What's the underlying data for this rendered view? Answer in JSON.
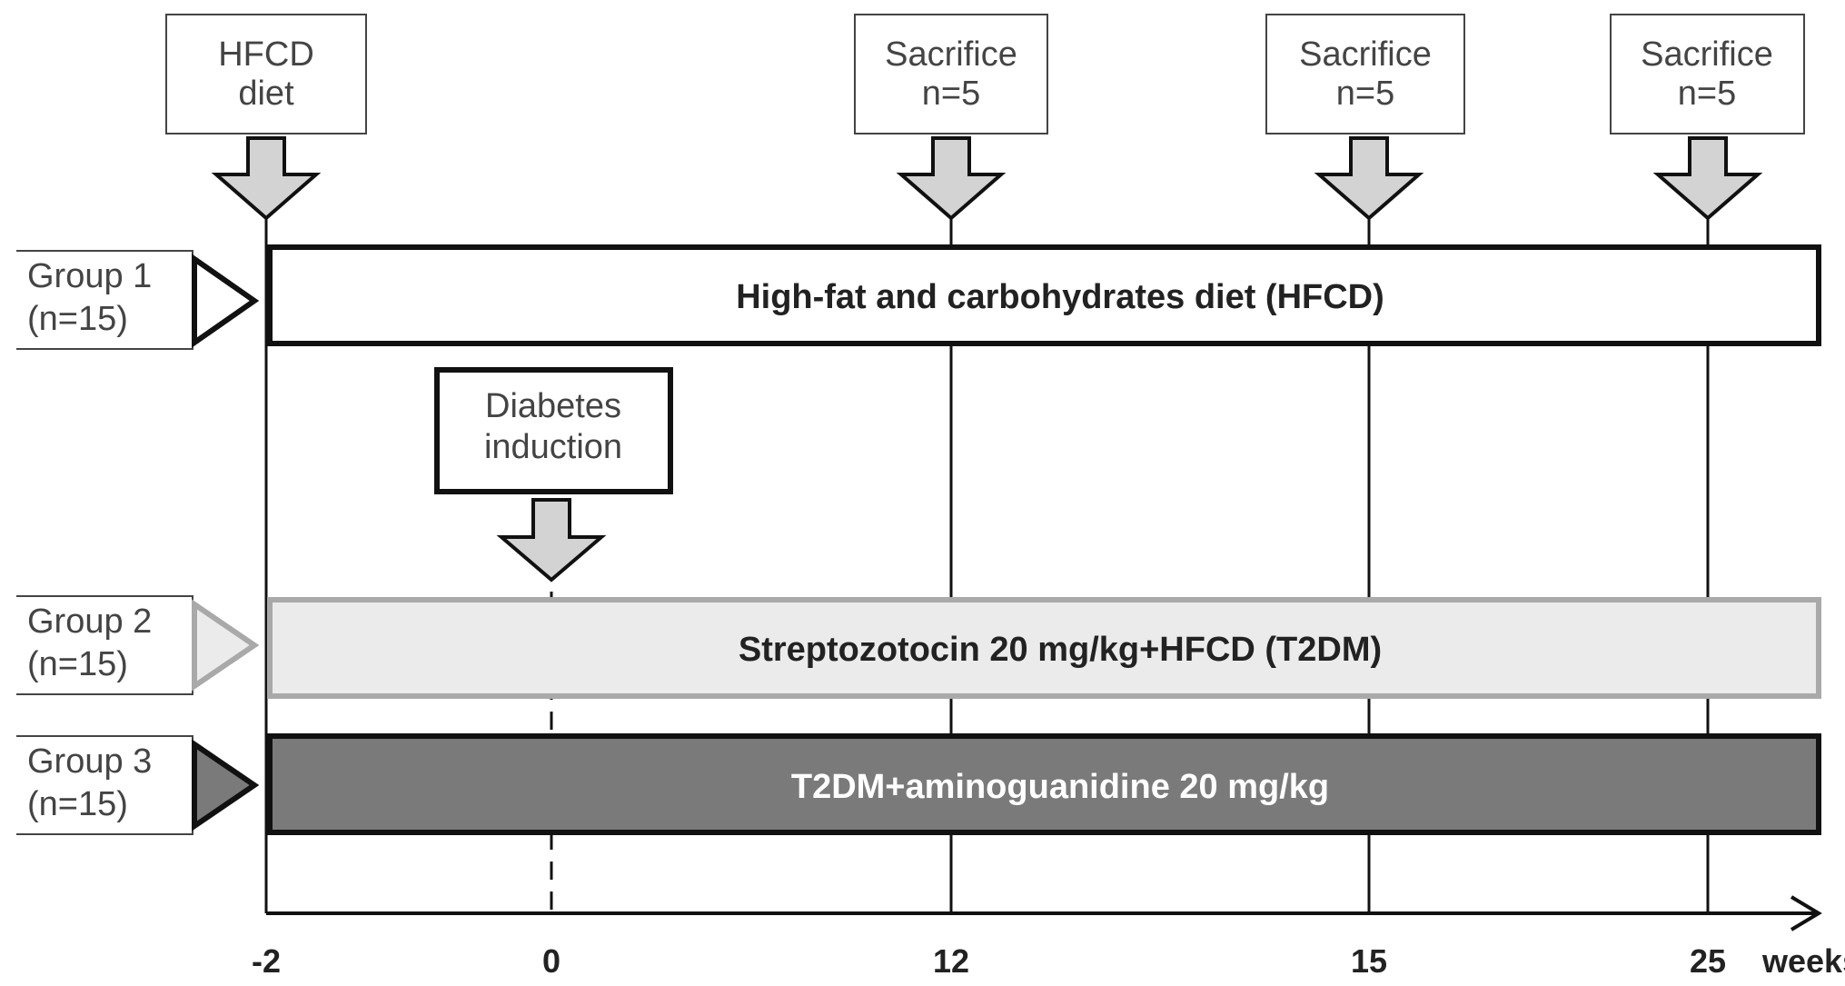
{
  "top_boxes": [
    {
      "line1": "HFCD",
      "line2": "diet"
    },
    {
      "line1": "Sacrifice",
      "line2": "n=5"
    },
    {
      "line1": "Sacrifice",
      "line2": "n=5"
    },
    {
      "line1": "Sacrifice",
      "line2": "n=5"
    }
  ],
  "induction_box": {
    "line1": "Diabetes",
    "line2": "induction"
  },
  "groups": [
    {
      "name": "Group 1",
      "n": "(n=15)",
      "bar_label": "High-fat and carbohydrates diet (HFCD)"
    },
    {
      "name": "Group 2",
      "n": "(n=15)",
      "bar_label": "Streptozotocin 20 mg/kg+HFCD (T2DM)"
    },
    {
      "name": "Group 3",
      "n": "(n=15)",
      "bar_label": "T2DM+aminoguanidine 20 mg/kg"
    }
  ],
  "axis": {
    "ticks": [
      "-2",
      "0",
      "12",
      "15",
      "25"
    ],
    "unit": "weeks"
  },
  "colors": {
    "group1_fill": "#ffffff",
    "group2_fill": "#ebebeb",
    "group2_border": "#a9a9a9",
    "group3_fill": "#7a7a7a",
    "arrow_fill": "#d3d3d3",
    "line": "#111111"
  }
}
